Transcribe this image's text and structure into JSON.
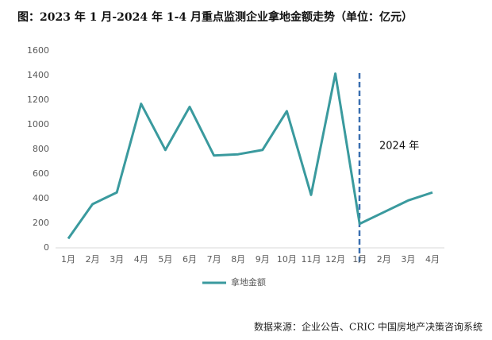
{
  "chart_data": {
    "type": "line",
    "title": "图：2023 年 1 月-2024 年 1-4 月重点监测企业拿地金额走势（单位：亿元）",
    "categories": [
      "1月",
      "2月",
      "3月",
      "4月",
      "5月",
      "6月",
      "7月",
      "8月",
      "9月",
      "10月",
      "11月",
      "12月",
      "1月",
      "2月",
      "3月",
      "4月"
    ],
    "series": [
      {
        "name": "拿地金额",
        "color": "#3a9a9e",
        "values": [
          75,
          355,
          450,
          1170,
          795,
          1145,
          750,
          760,
          795,
          1110,
          430,
          1415,
          195,
          290,
          385,
          450
        ]
      }
    ],
    "ylim": [
      0,
      1600
    ],
    "yticks": [
      0,
      200,
      400,
      600,
      800,
      1000,
      1200,
      1400,
      1600
    ],
    "grid": false,
    "legend": "bottom",
    "annotation": "2024 年",
    "source": "数据来源：企业公告、CRIC 中国房地产决策咨询系统"
  }
}
